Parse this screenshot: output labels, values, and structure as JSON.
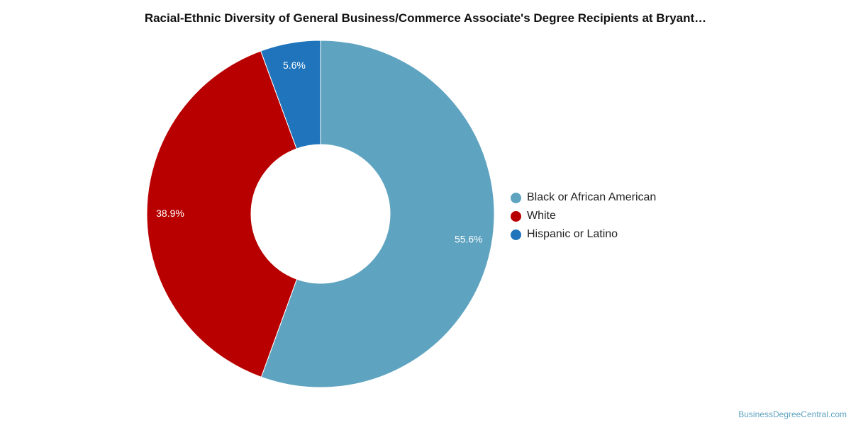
{
  "chart_data": {
    "type": "pie",
    "title": "Racial-Ethnic Diversity of General Business/Commerce Associate's Degree Recipients at Bryant…",
    "categories": [
      "Black or African American",
      "White",
      "Hispanic or Latino"
    ],
    "values": [
      55.6,
      38.9,
      5.6
    ],
    "value_labels": [
      "55.6%",
      "38.9%",
      "5.6%"
    ],
    "colors": [
      "#5ea3c0",
      "#b90000",
      "#1f74bb"
    ],
    "donut": true,
    "legend_position": "right"
  },
  "watermark": "BusinessDegreeCentral.com"
}
